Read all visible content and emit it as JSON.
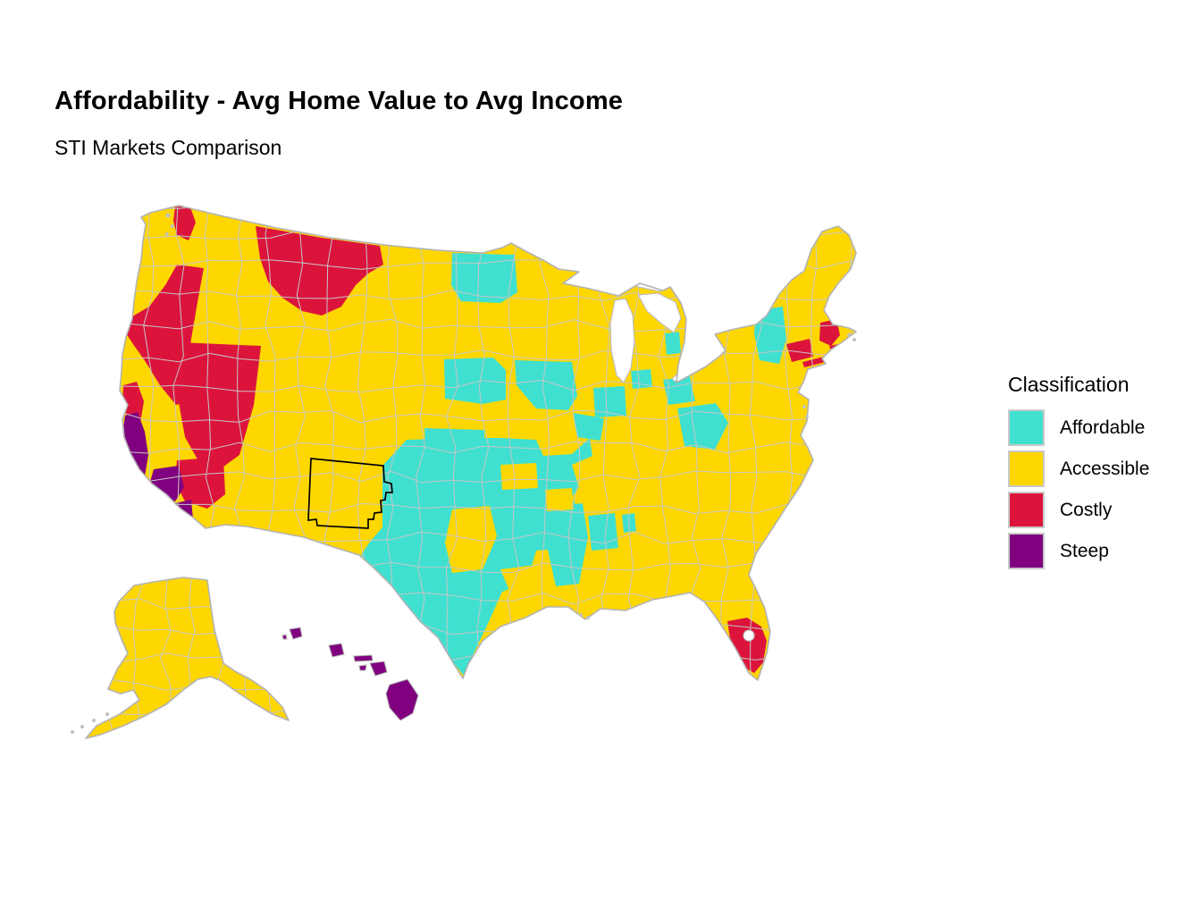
{
  "header": {
    "title": "Affordability - Avg Home Value to Avg Income",
    "subtitle": "STI Markets Comparison"
  },
  "legend": {
    "title": "Classification",
    "items": [
      {
        "label": "Affordable",
        "color": "#40E0D0"
      },
      {
        "label": "Accessible",
        "color": "#FFD700"
      },
      {
        "label": "Costly",
        "color": "#DC143C"
      },
      {
        "label": "Steep",
        "color": "#800080"
      }
    ]
  },
  "chart_data": {
    "type": "choropleth",
    "geography": "United States housing market regions (county groupings), including Alaska and Hawaii insets",
    "title": "Affordability - Avg Home Value to Avg Income",
    "subtitle": "STI Markets Comparison",
    "legend_title": "Classification",
    "classes": [
      {
        "label": "Affordable",
        "color": "#40E0D0"
      },
      {
        "label": "Accessible",
        "color": "#FFD700"
      },
      {
        "label": "Costly",
        "color": "#DC143C"
      },
      {
        "label": "Steep",
        "color": "#800080"
      }
    ],
    "default_class": "Accessible",
    "regions_by_class": {
      "Affordable": [
        "west-central Minnesota / eastern Dakotas patch",
        "eastern Nebraska and western Iowa",
        "central Kansas block",
        "northern Missouri and central Illinois",
        "Indiana and western Ohio pockets",
        "central Ohio pocket",
        "West Virginia / Appalachian pockets",
        "upstate New York (Adirondacks)",
        "lower Michigan pockets",
        "Oklahoma and Texas panhandle",
        "west Texas and south Texas",
        "Arkansas pocket",
        "Louisiana / Mississippi column",
        "Mississippi-Alabama pockets",
        "Kentucky pocket"
      ],
      "Accessible": [
        "most remaining regions nationwide",
        "Alaska",
        "Maine and northern New England",
        "Pacific Northwest interior, Idaho, Utah, Wyoming, Colorado",
        "most of Arizona and New Mexico",
        "Great Plains, Southeast, mid-Atlantic, Florida north/central",
        "black-outlined north-central New Mexico region"
      ],
      "Costly": [
        "Seattle / Puget Sound strip",
        "Montana",
        "western Oregon through northern California band",
        "San Francisco Bay Area coastal strip",
        "Nevada",
        "inland Southern California (Riverside-San Bernardino)",
        "South Florida (Miami area, around Lake Okeechobee)",
        "Boston area Massachusetts",
        "Rhode Island",
        "Connecticut",
        "Long Island NY"
      ],
      "Steep": [
        "California Central Coast strip",
        "Los Angeles area",
        "San Diego area",
        "Hawaii (all islands)"
      ]
    },
    "map_features": [
      "Great Lakes rendered white",
      "thin gray county-group boundary mesh over all regions",
      "black highlight outline around a north-central New Mexico region",
      "white Lake Okeechobee hole inside the South Florida Costly region",
      "gray coastline fringe (Puget Sound, Cape Cod, Chesapeake, Mississippi delta, Alaska coast)"
    ]
  }
}
